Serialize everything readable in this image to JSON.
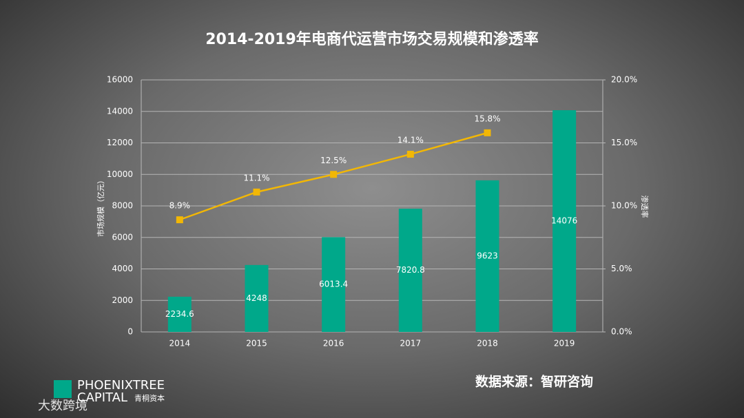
{
  "chart_data": {
    "type": "bar_line",
    "title": "2014-2019年电商代运营市场交易规模和渗透率",
    "categories": [
      "2014",
      "2015",
      "2016",
      "2017",
      "2018",
      "2019"
    ],
    "series": [
      {
        "type": "bar",
        "color": "#00a88a",
        "values": [
          2234.6,
          4248,
          6013.4,
          7820.8,
          9623,
          14076
        ]
      },
      {
        "type": "line",
        "color": "#f2b705",
        "axis": "y2",
        "values": [
          8.9,
          11.1,
          12.5,
          14.1,
          15.8,
          null
        ],
        "value_labels": [
          "8.9%",
          "11.1%",
          "12.5%",
          "14.1%",
          "15.8%",
          null
        ]
      }
    ],
    "ylabel": "市场规模（亿元）",
    "y2label": "渗透率",
    "ylim": [
      0,
      16000
    ],
    "yticks": [
      0,
      2000,
      4000,
      6000,
      8000,
      10000,
      12000,
      14000,
      16000
    ],
    "y2lim": [
      0,
      20
    ],
    "y2ticks": [
      {
        "value": 0,
        "label": "0.0%"
      },
      {
        "value": 5,
        "label": "5.0%"
      },
      {
        "value": 10,
        "label": "10.0%"
      },
      {
        "value": 15,
        "label": "15.0%"
      },
      {
        "value": 20,
        "label": "20.0%"
      }
    ],
    "grid": true
  },
  "footer": {
    "source": "数据来源：智研咨询",
    "logo": "PHOENIXTREE",
    "logo2": "CAPITAL",
    "logo_cn": "青桐资本",
    "watermark": "大数跨境"
  }
}
